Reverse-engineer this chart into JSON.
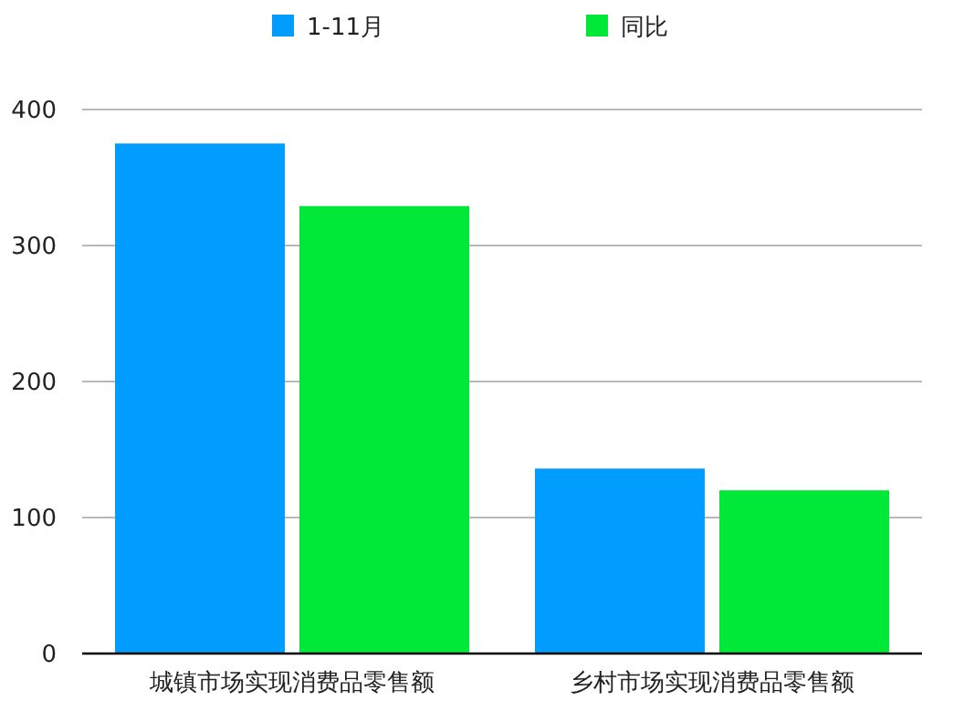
{
  "chart_data": {
    "type": "bar",
    "categories": [
      "城镇市场实现消费品零售额",
      "乡村市场实现消费品零售额"
    ],
    "series": [
      {
        "name": "1-11月",
        "color": "#009dff",
        "values": [
          375,
          136
        ]
      },
      {
        "name": "同比",
        "color": "#00e838",
        "values": [
          329,
          120
        ]
      }
    ],
    "ylim": [
      0,
      400
    ],
    "yticks": [
      0,
      100,
      200,
      300,
      400
    ],
    "grid": "y",
    "legend": "top"
  }
}
